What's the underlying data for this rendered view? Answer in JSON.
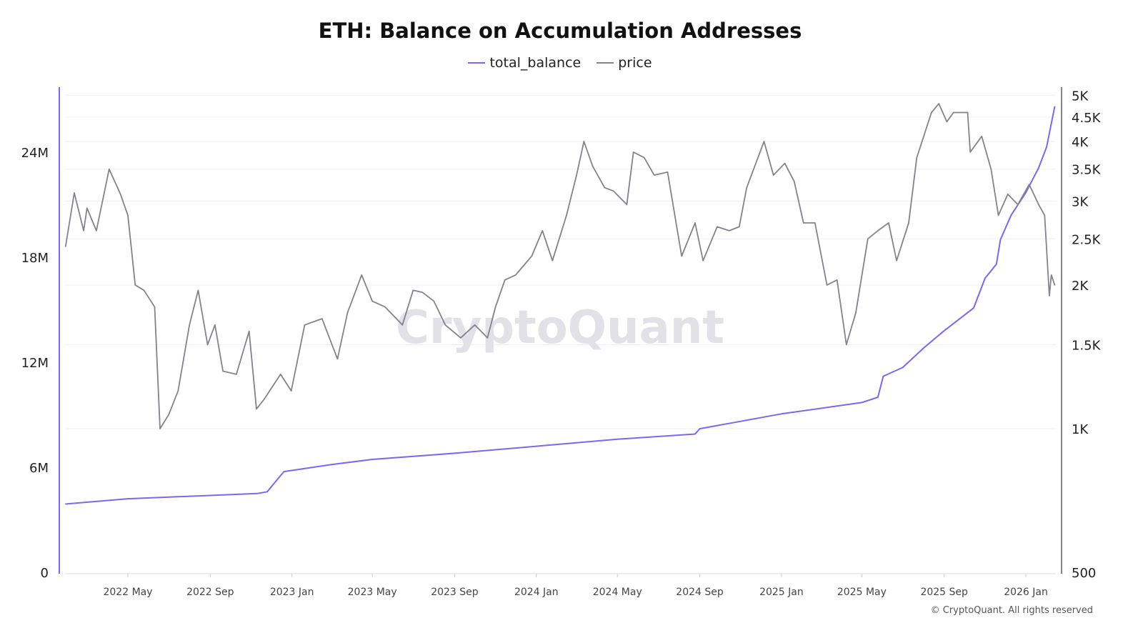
{
  "chart_data": {
    "type": "line",
    "title": "ETH: Balance on Accumulation Addresses",
    "legend_position": "top",
    "grid": true,
    "watermark": "CryptoQuant",
    "copyright": "© CryptoQuant. All rights reserved",
    "x_ticks": [
      {
        "label": "2022 May",
        "date": "2022-05-01"
      },
      {
        "label": "2022 Sep",
        "date": "2022-09-01"
      },
      {
        "label": "2023 Jan",
        "date": "2023-01-01"
      },
      {
        "label": "2023 May",
        "date": "2023-05-01"
      },
      {
        "label": "2023 Sep",
        "date": "2023-09-01"
      },
      {
        "label": "2024 Jan",
        "date": "2024-01-01"
      },
      {
        "label": "2024 May",
        "date": "2024-05-01"
      },
      {
        "label": "2024 Sep",
        "date": "2024-09-01"
      },
      {
        "label": "2025 Jan",
        "date": "2025-01-01"
      },
      {
        "label": "2025 May",
        "date": "2025-05-01"
      },
      {
        "label": "2025 Sep",
        "date": "2025-09-01"
      },
      {
        "label": "2026 Jan",
        "date": "2026-01-01"
      }
    ],
    "x_range": [
      "2022-01-28",
      "2026-02-13"
    ],
    "left_axis": {
      "scale": "linear",
      "range": [
        0,
        27000000
      ],
      "ticks": [
        {
          "v": 0,
          "label": "0"
        },
        {
          "v": 6000000,
          "label": "6M"
        },
        {
          "v": 12000000,
          "label": "12M"
        },
        {
          "v": 18000000,
          "label": "18M"
        },
        {
          "v": 24000000,
          "label": "24M"
        }
      ]
    },
    "right_axis": {
      "scale": "log",
      "range": [
        500,
        5200
      ],
      "ticks": [
        {
          "v": 500,
          "label": "500"
        },
        {
          "v": 1000,
          "label": "1K"
        },
        {
          "v": 1500,
          "label": "1.5K"
        },
        {
          "v": 2000,
          "label": "2K"
        },
        {
          "v": 2500,
          "label": "2.5K"
        },
        {
          "v": 3000,
          "label": "3K"
        },
        {
          "v": 3500,
          "label": "3.5K"
        },
        {
          "v": 4000,
          "label": "4K"
        },
        {
          "v": 4500,
          "label": "4.5K"
        },
        {
          "v": 5000,
          "label": "5K"
        }
      ]
    },
    "series": [
      {
        "name": "total_balance",
        "axis": "left",
        "color": "#7b68ee",
        "points": [
          [
            "2022-01-28",
            3900000
          ],
          [
            "2022-05-01",
            4200000
          ],
          [
            "2022-11-10",
            4500000
          ],
          [
            "2022-11-25",
            4600000
          ],
          [
            "2022-12-20",
            5750000
          ],
          [
            "2023-01-15",
            5900000
          ],
          [
            "2023-03-01",
            6150000
          ],
          [
            "2023-05-01",
            6450000
          ],
          [
            "2023-09-01",
            6800000
          ],
          [
            "2024-01-01",
            7200000
          ],
          [
            "2024-05-01",
            7600000
          ],
          [
            "2024-08-25",
            7900000
          ],
          [
            "2024-09-01",
            8200000
          ],
          [
            "2025-01-01",
            9050000
          ],
          [
            "2025-05-01",
            9700000
          ],
          [
            "2025-05-25",
            10000000
          ],
          [
            "2025-06-02",
            11200000
          ],
          [
            "2025-07-01",
            11700000
          ],
          [
            "2025-08-01",
            12800000
          ],
          [
            "2025-09-01",
            13800000
          ],
          [
            "2025-10-15",
            15100000
          ],
          [
            "2025-11-01",
            16800000
          ],
          [
            "2025-11-18",
            17600000
          ],
          [
            "2025-11-24",
            19000000
          ],
          [
            "2025-12-10",
            20400000
          ],
          [
            "2026-01-01",
            21700000
          ],
          [
            "2026-01-20",
            23100000
          ],
          [
            "2026-02-01",
            24300000
          ],
          [
            "2026-02-13",
            26600000
          ]
        ]
      },
      {
        "name": "price",
        "axis": "right",
        "color": "#85818f",
        "points": [
          [
            "2022-01-28",
            2410
          ],
          [
            "2022-02-10",
            3120
          ],
          [
            "2022-02-24",
            2600
          ],
          [
            "2022-03-01",
            2900
          ],
          [
            "2022-03-15",
            2600
          ],
          [
            "2022-04-03",
            3500
          ],
          [
            "2022-04-20",
            3100
          ],
          [
            "2022-05-01",
            2800
          ],
          [
            "2022-05-12",
            2000
          ],
          [
            "2022-05-25",
            1950
          ],
          [
            "2022-06-10",
            1800
          ],
          [
            "2022-06-18",
            1000
          ],
          [
            "2022-07-01",
            1070
          ],
          [
            "2022-07-15",
            1200
          ],
          [
            "2022-08-01",
            1650
          ],
          [
            "2022-08-14",
            1950
          ],
          [
            "2022-08-28",
            1500
          ],
          [
            "2022-09-08",
            1650
          ],
          [
            "2022-09-20",
            1320
          ],
          [
            "2022-10-10",
            1300
          ],
          [
            "2022-10-29",
            1600
          ],
          [
            "2022-11-09",
            1100
          ],
          [
            "2022-11-20",
            1150
          ],
          [
            "2022-12-15",
            1300
          ],
          [
            "2022-12-31",
            1200
          ],
          [
            "2023-01-20",
            1650
          ],
          [
            "2023-02-15",
            1700
          ],
          [
            "2023-03-10",
            1400
          ],
          [
            "2023-03-25",
            1750
          ],
          [
            "2023-04-15",
            2100
          ],
          [
            "2023-05-01",
            1850
          ],
          [
            "2023-05-20",
            1800
          ],
          [
            "2023-06-15",
            1650
          ],
          [
            "2023-07-01",
            1950
          ],
          [
            "2023-07-15",
            1930
          ],
          [
            "2023-08-01",
            1850
          ],
          [
            "2023-08-18",
            1650
          ],
          [
            "2023-09-10",
            1550
          ],
          [
            "2023-10-01",
            1650
          ],
          [
            "2023-10-20",
            1550
          ],
          [
            "2023-11-01",
            1800
          ],
          [
            "2023-11-15",
            2050
          ],
          [
            "2023-12-01",
            2100
          ],
          [
            "2023-12-25",
            2300
          ],
          [
            "2024-01-10",
            2600
          ],
          [
            "2024-01-25",
            2250
          ],
          [
            "2024-02-15",
            2800
          ],
          [
            "2024-03-01",
            3400
          ],
          [
            "2024-03-12",
            4000
          ],
          [
            "2024-03-25",
            3550
          ],
          [
            "2024-04-12",
            3200
          ],
          [
            "2024-04-25",
            3150
          ],
          [
            "2024-05-15",
            2950
          ],
          [
            "2024-05-25",
            3800
          ],
          [
            "2024-06-10",
            3700
          ],
          [
            "2024-06-25",
            3400
          ],
          [
            "2024-07-15",
            3450
          ],
          [
            "2024-08-05",
            2300
          ],
          [
            "2024-08-25",
            2700
          ],
          [
            "2024-09-06",
            2250
          ],
          [
            "2024-09-27",
            2650
          ],
          [
            "2024-10-15",
            2600
          ],
          [
            "2024-10-30",
            2650
          ],
          [
            "2024-11-10",
            3200
          ],
          [
            "2024-12-06",
            4000
          ],
          [
            "2024-12-20",
            3400
          ],
          [
            "2025-01-06",
            3600
          ],
          [
            "2025-01-20",
            3300
          ],
          [
            "2025-02-03",
            2700
          ],
          [
            "2025-02-20",
            2700
          ],
          [
            "2025-03-10",
            2000
          ],
          [
            "2025-03-25",
            2050
          ],
          [
            "2025-04-08",
            1500
          ],
          [
            "2025-04-22",
            1750
          ],
          [
            "2025-05-10",
            2500
          ],
          [
            "2025-05-25",
            2600
          ],
          [
            "2025-06-10",
            2700
          ],
          [
            "2025-06-22",
            2250
          ],
          [
            "2025-07-10",
            2700
          ],
          [
            "2025-07-22",
            3700
          ],
          [
            "2025-08-13",
            4600
          ],
          [
            "2025-08-24",
            4800
          ],
          [
            "2025-09-05",
            4400
          ],
          [
            "2025-09-15",
            4600
          ],
          [
            "2025-10-06",
            4600
          ],
          [
            "2025-10-10",
            3800
          ],
          [
            "2025-10-27",
            4100
          ],
          [
            "2025-11-10",
            3500
          ],
          [
            "2025-11-21",
            2800
          ],
          [
            "2025-12-05",
            3100
          ],
          [
            "2025-12-20",
            2950
          ],
          [
            "2026-01-06",
            3250
          ],
          [
            "2026-01-20",
            2950
          ],
          [
            "2026-01-29",
            2800
          ],
          [
            "2026-02-05",
            1900
          ],
          [
            "2026-02-08",
            2100
          ],
          [
            "2026-02-13",
            2000
          ]
        ]
      }
    ]
  }
}
